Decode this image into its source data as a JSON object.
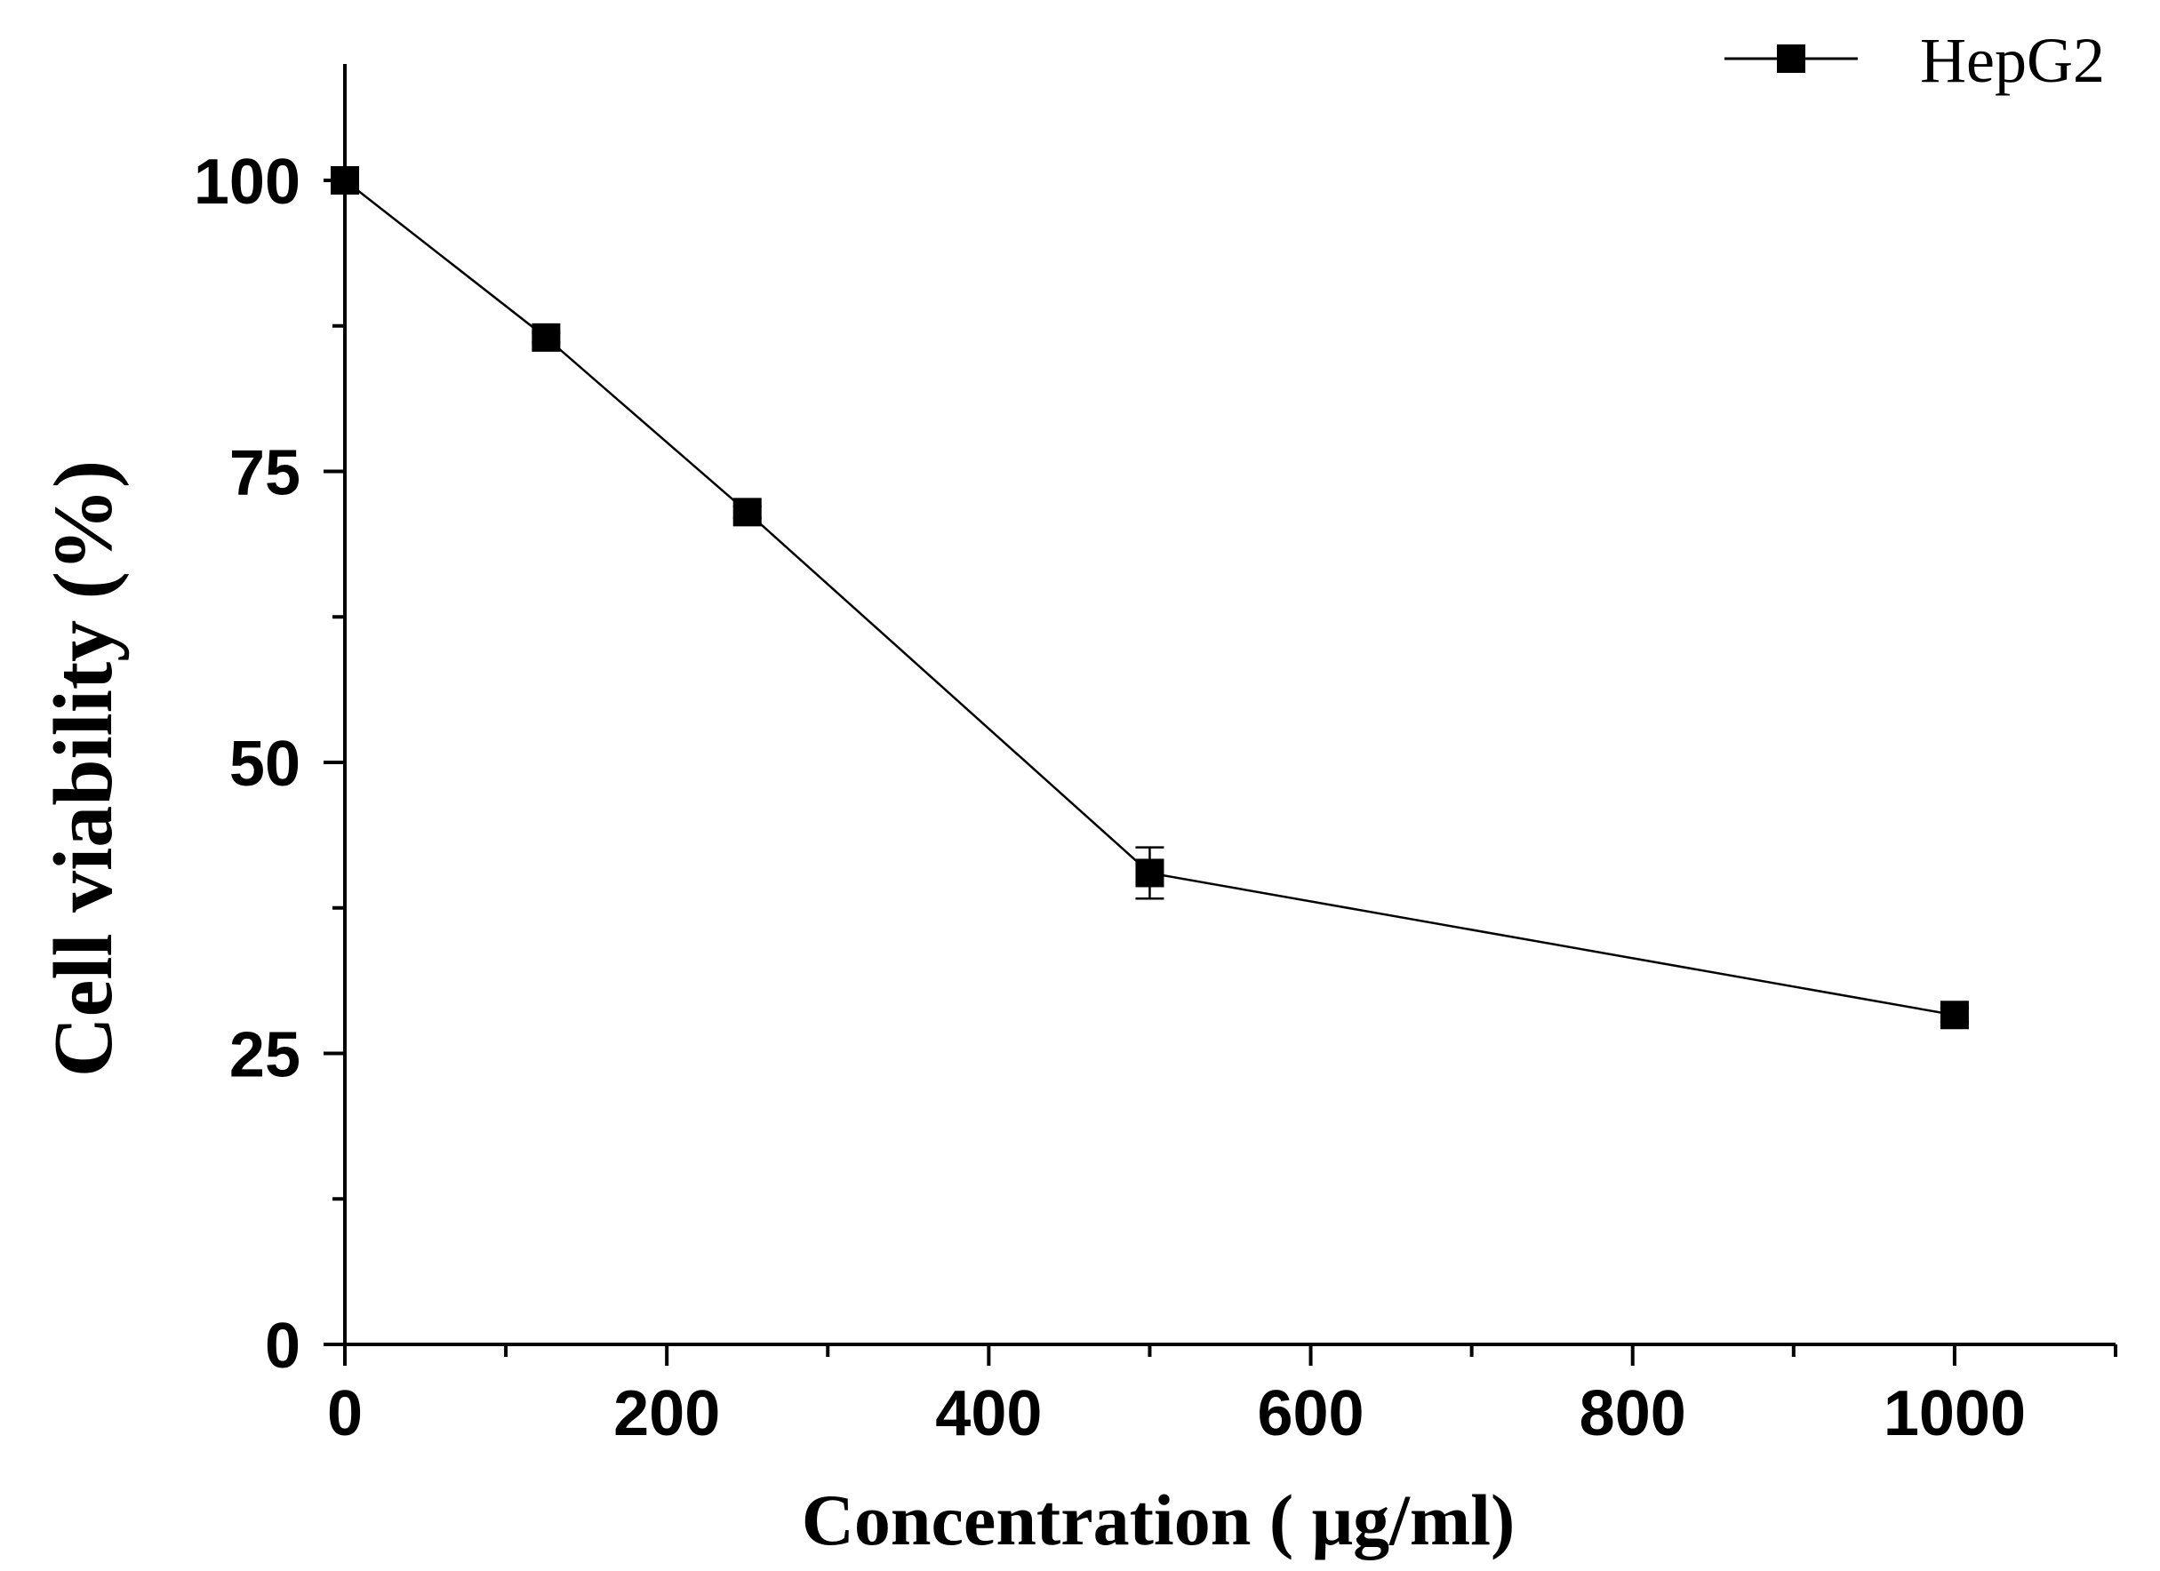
{
  "chart_data": {
    "type": "line",
    "title": "",
    "xlabel": "Concentration ( μg/ml)",
    "ylabel": "Cell viability (%)",
    "xlim": [
      0,
      1100
    ],
    "ylim": [
      0,
      110
    ],
    "x_major_ticks": [
      0,
      200,
      400,
      600,
      800,
      1000
    ],
    "x_minor_ticks": [
      100,
      300,
      500,
      700,
      900,
      1100
    ],
    "y_major_ticks": [
      0,
      25,
      50,
      75,
      100
    ],
    "y_minor_ticks": [
      12.5,
      37.5,
      62.5,
      87.5
    ],
    "x_tick_labels": [
      "0",
      "200",
      "400",
      "600",
      "800",
      "1000"
    ],
    "y_tick_labels": [
      "0",
      "25",
      "50",
      "75",
      "100"
    ],
    "grid": false,
    "legend_position": "top-right",
    "series": [
      {
        "name": "HepG2",
        "marker": "square",
        "color": "#000000",
        "x": [
          0,
          125,
          250,
          500,
          1000
        ],
        "y": [
          100,
          86.5,
          71.5,
          40.5,
          28.3
        ],
        "error": [
          0.3,
          0.4,
          0.5,
          2.2,
          0.6
        ]
      }
    ]
  }
}
